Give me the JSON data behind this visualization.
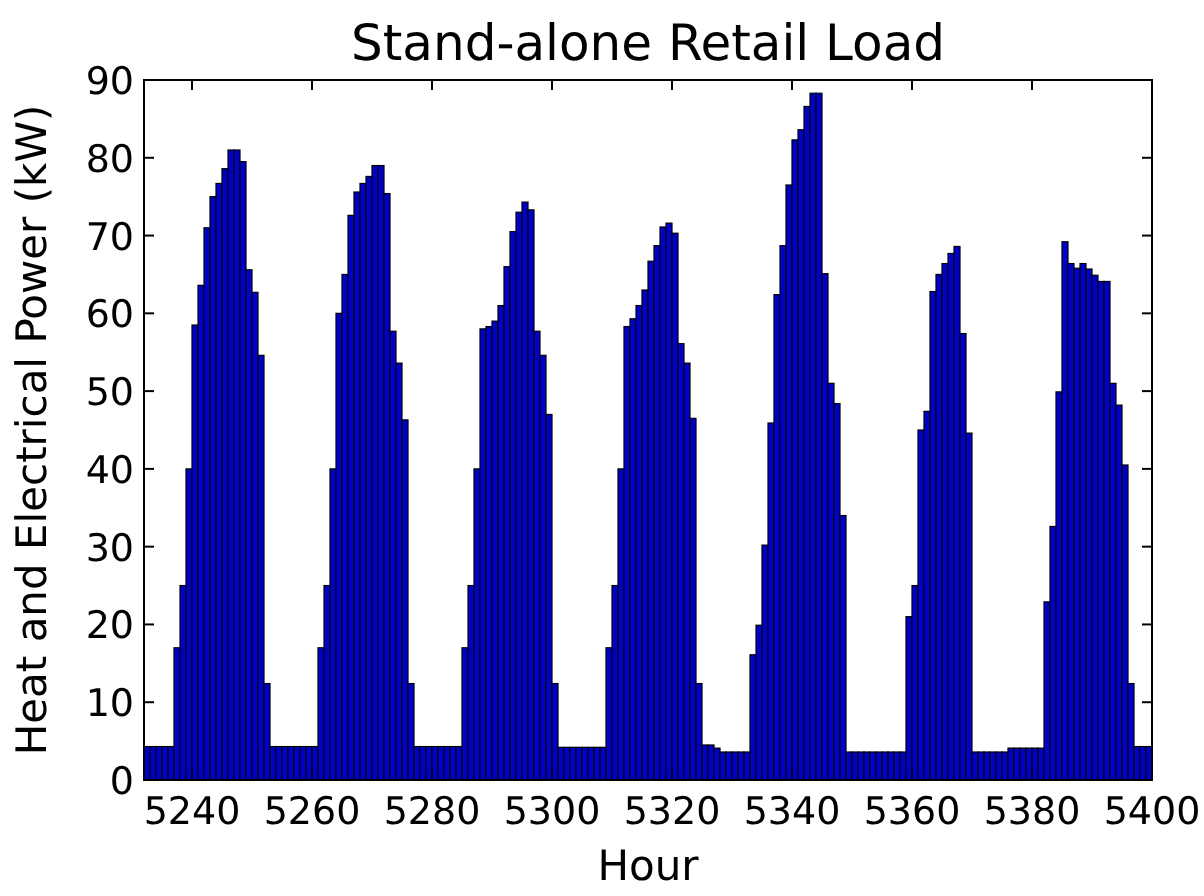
{
  "chart_data": {
    "type": "bar",
    "title": "Stand-alone Retail Load",
    "xlabel": "Hour",
    "ylabel": "Heat and Electrical Power (kW)",
    "x": [
      5232,
      5233,
      5234,
      5235,
      5236,
      5237,
      5238,
      5239,
      5240,
      5241,
      5242,
      5243,
      5244,
      5245,
      5246,
      5247,
      5248,
      5249,
      5250,
      5251,
      5252,
      5253,
      5254,
      5255,
      5256,
      5257,
      5258,
      5259,
      5260,
      5261,
      5262,
      5263,
      5264,
      5265,
      5266,
      5267,
      5268,
      5269,
      5270,
      5271,
      5272,
      5273,
      5274,
      5275,
      5276,
      5277,
      5278,
      5279,
      5280,
      5281,
      5282,
      5283,
      5284,
      5285,
      5286,
      5287,
      5288,
      5289,
      5290,
      5291,
      5292,
      5293,
      5294,
      5295,
      5296,
      5297,
      5298,
      5299,
      5300,
      5301,
      5302,
      5303,
      5304,
      5305,
      5306,
      5307,
      5308,
      5309,
      5310,
      5311,
      5312,
      5313,
      5314,
      5315,
      5316,
      5317,
      5318,
      5319,
      5320,
      5321,
      5322,
      5323,
      5324,
      5325,
      5326,
      5327,
      5328,
      5329,
      5330,
      5331,
      5332,
      5333,
      5334,
      5335,
      5336,
      5337,
      5338,
      5339,
      5340,
      5341,
      5342,
      5343,
      5344,
      5345,
      5346,
      5347,
      5348,
      5349,
      5350,
      5351,
      5352,
      5353,
      5354,
      5355,
      5356,
      5357,
      5358,
      5359,
      5360,
      5361,
      5362,
      5363,
      5364,
      5365,
      5366,
      5367,
      5368,
      5369,
      5370,
      5371,
      5372,
      5373,
      5374,
      5375,
      5376,
      5377,
      5378,
      5379,
      5380,
      5381,
      5382,
      5383,
      5384,
      5385,
      5386,
      5387,
      5388,
      5389,
      5390,
      5391,
      5392,
      5393,
      5394,
      5395,
      5396,
      5397,
      5398,
      5399
    ],
    "values": [
      4.3,
      4.3,
      4.3,
      4.3,
      4.3,
      17,
      25,
      40,
      58.5,
      63.6,
      71,
      75,
      76.7,
      78.6,
      81,
      81,
      79.5,
      65.6,
      62.7,
      54.6,
      12.4,
      4.3,
      4.3,
      4.3,
      4.3,
      4.3,
      4.3,
      4.3,
      4.3,
      17,
      25,
      40,
      60,
      65,
      72.6,
      75.6,
      76.7,
      77.6,
      79,
      79,
      75.4,
      57.7,
      53.6,
      46.3,
      12.4,
      4.3,
      4.3,
      4.3,
      4.3,
      4.3,
      4.3,
      4.3,
      4.3,
      17,
      25,
      40,
      58,
      58.3,
      59,
      61,
      66,
      70.5,
      73,
      74.3,
      73.3,
      57.7,
      54.6,
      47,
      12.4,
      4.2,
      4.2,
      4.2,
      4.2,
      4.2,
      4.2,
      4.2,
      4.2,
      17,
      25,
      40,
      58.3,
      59.3,
      61,
      63,
      66.7,
      68.7,
      71.1,
      71.6,
      70.3,
      56.1,
      53.6,
      46.5,
      12.4,
      4.5,
      4.5,
      4.1,
      3.6,
      3.6,
      3.6,
      3.6,
      3.6,
      16.1,
      19.9,
      30.2,
      45.9,
      62.4,
      68.7,
      76.5,
      82.3,
      83.6,
      86.6,
      88.3,
      88.3,
      65.1,
      51,
      48.4,
      34,
      3.6,
      3.6,
      3.6,
      3.6,
      3.6,
      3.6,
      3.6,
      3.6,
      3.6,
      3.6,
      21,
      25,
      45,
      47.4,
      62.8,
      65,
      66.4,
      67.7,
      68.6,
      57.4,
      44.6,
      3.6,
      3.6,
      3.6,
      3.6,
      3.6,
      3.6,
      4.1,
      4.1,
      4.1,
      4.1,
      4.1,
      4.1,
      22.9,
      32.6,
      49.9,
      69.2,
      66.4,
      65.8,
      66.4,
      65.7,
      64.9,
      64.1,
      64.1,
      51,
      48.2,
      40.5,
      12.4,
      4.3,
      4.3,
      4.3
    ],
    "color": "#0000cc",
    "xlim": [
      5232,
      5400
    ],
    "xticks": [
      5240,
      5260,
      5280,
      5300,
      5320,
      5340,
      5360,
      5380,
      5400
    ],
    "ylim": [
      0,
      90
    ],
    "yticks": [
      0,
      10,
      20,
      30,
      40,
      50,
      60,
      70,
      80,
      90
    ]
  }
}
